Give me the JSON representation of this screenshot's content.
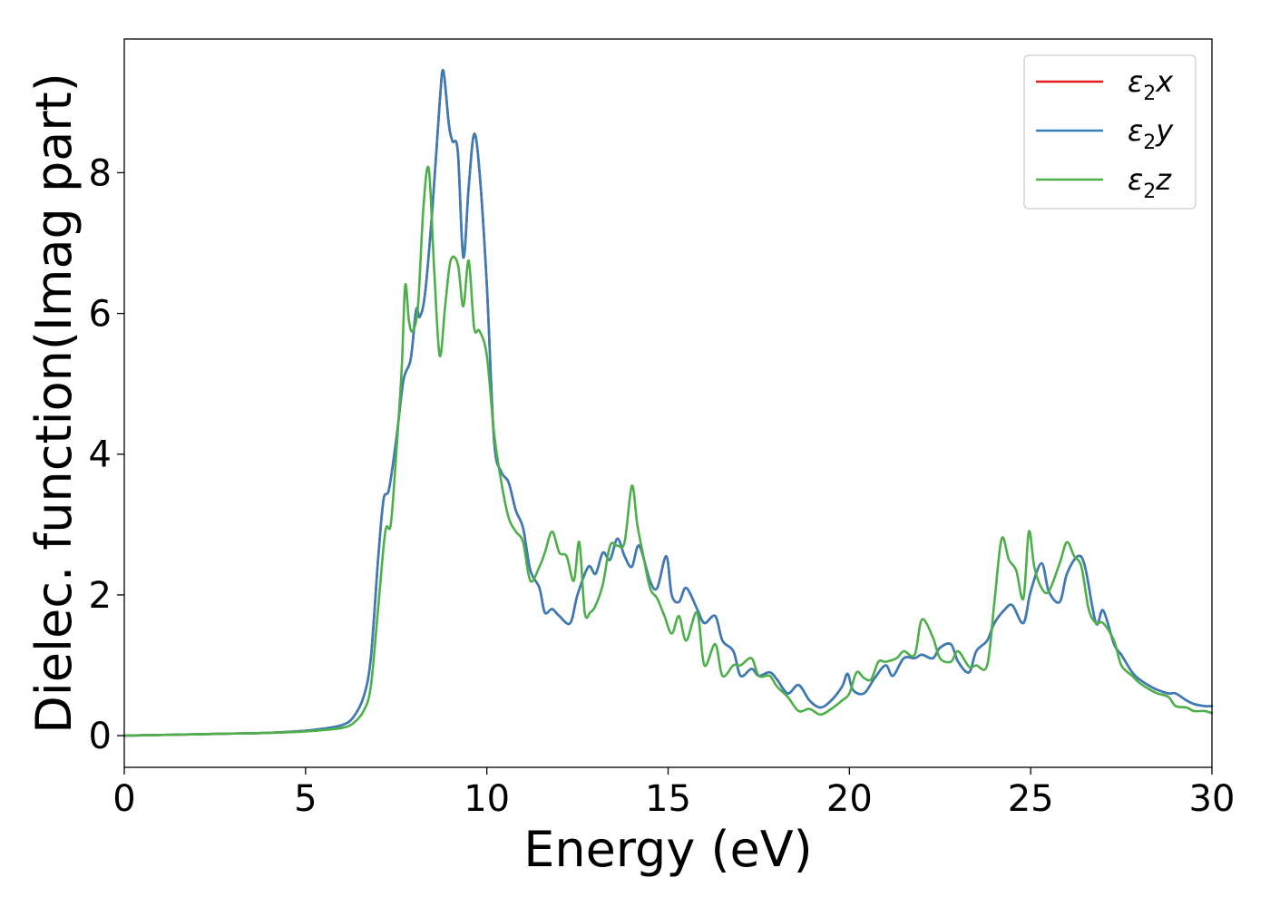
{
  "chart_data": {
    "type": "line",
    "title": "",
    "xlabel": "Energy (eV)",
    "ylabel": "Dielec. function(Imag part)",
    "xlim": [
      0,
      30
    ],
    "ylim": [
      -0.45,
      9.9
    ],
    "xticks": [
      0,
      5,
      10,
      15,
      20,
      25,
      30
    ],
    "yticks": [
      0,
      2,
      4,
      6,
      8
    ],
    "grid": false,
    "legend_position": "top-right",
    "series": [
      {
        "name": "ε₂x",
        "legend_parts": {
          "base": "ε",
          "sub": "2",
          "var": "x"
        },
        "color": "#e41a1c",
        "x": [
          0,
          1,
          2,
          3,
          4,
          5,
          5.5,
          6,
          6.3,
          6.6,
          6.8,
          7.0,
          7.15,
          7.3,
          7.5,
          7.7,
          7.9,
          8.05,
          8.15,
          8.3,
          8.5,
          8.7,
          8.8,
          8.95,
          9.05,
          9.2,
          9.35,
          9.5,
          9.65,
          9.8,
          10.0,
          10.2,
          10.4,
          10.6,
          10.8,
          11.0,
          11.2,
          11.45,
          11.6,
          11.8,
          12.0,
          12.3,
          12.5,
          12.8,
          13.0,
          13.2,
          13.4,
          13.6,
          13.8,
          14.0,
          14.2,
          14.5,
          14.7,
          14.95,
          15.1,
          15.3,
          15.5,
          15.8,
          16.0,
          16.3,
          16.5,
          16.8,
          17.0,
          17.3,
          17.5,
          17.8,
          18.0,
          18.3,
          18.6,
          18.9,
          19.2,
          19.5,
          19.8,
          19.95,
          20.1,
          20.4,
          20.7,
          21.0,
          21.2,
          21.5,
          21.8,
          22.0,
          22.3,
          22.5,
          22.8,
          23.0,
          23.3,
          23.5,
          23.8,
          24.0,
          24.3,
          24.5,
          24.8,
          25.0,
          25.3,
          25.5,
          25.8,
          26.0,
          26.3,
          26.5,
          26.8,
          27.0,
          27.3,
          27.5,
          27.8,
          28.0,
          28.3,
          28.5,
          28.8,
          29.0,
          29.3,
          29.5,
          29.8,
          30.0
        ],
        "y": [
          0,
          0.01,
          0.02,
          0.03,
          0.04,
          0.07,
          0.1,
          0.15,
          0.25,
          0.55,
          1.1,
          2.5,
          3.35,
          3.5,
          4.2,
          5.05,
          5.35,
          6.05,
          5.95,
          6.3,
          7.5,
          9.0,
          9.45,
          8.7,
          8.45,
          8.3,
          6.8,
          7.8,
          8.55,
          8.0,
          6.4,
          4.2,
          3.75,
          3.6,
          3.2,
          2.95,
          2.35,
          2.1,
          1.75,
          1.8,
          1.7,
          1.6,
          2.0,
          2.4,
          2.3,
          2.6,
          2.5,
          2.8,
          2.55,
          2.4,
          2.7,
          2.2,
          2.1,
          2.55,
          2.0,
          1.9,
          2.1,
          1.8,
          1.6,
          1.7,
          1.35,
          1.2,
          0.85,
          0.95,
          0.85,
          0.9,
          0.8,
          0.6,
          0.72,
          0.5,
          0.4,
          0.5,
          0.7,
          0.88,
          0.65,
          0.6,
          0.82,
          1.0,
          0.85,
          1.1,
          1.1,
          1.15,
          1.1,
          1.25,
          1.3,
          1.05,
          0.9,
          1.2,
          1.35,
          1.6,
          1.8,
          1.85,
          1.6,
          2.05,
          2.45,
          2.05,
          1.9,
          2.3,
          2.55,
          2.4,
          1.6,
          1.78,
          1.3,
          1.15,
          0.9,
          0.8,
          0.7,
          0.65,
          0.6,
          0.6,
          0.5,
          0.45,
          0.42,
          0.42
        ]
      },
      {
        "name": "ε₂y",
        "legend_parts": {
          "base": "ε",
          "sub": "2",
          "var": "y"
        },
        "color": "#377eb8",
        "x": [
          0,
          1,
          2,
          3,
          4,
          5,
          5.5,
          6,
          6.3,
          6.6,
          6.8,
          7.0,
          7.15,
          7.3,
          7.5,
          7.7,
          7.9,
          8.05,
          8.15,
          8.3,
          8.5,
          8.7,
          8.8,
          8.95,
          9.05,
          9.2,
          9.35,
          9.5,
          9.65,
          9.8,
          10.0,
          10.2,
          10.4,
          10.6,
          10.8,
          11.0,
          11.2,
          11.45,
          11.6,
          11.8,
          12.0,
          12.3,
          12.5,
          12.8,
          13.0,
          13.2,
          13.4,
          13.6,
          13.8,
          14.0,
          14.2,
          14.5,
          14.7,
          14.95,
          15.1,
          15.3,
          15.5,
          15.8,
          16.0,
          16.3,
          16.5,
          16.8,
          17.0,
          17.3,
          17.5,
          17.8,
          18.0,
          18.3,
          18.6,
          18.9,
          19.2,
          19.5,
          19.8,
          19.95,
          20.1,
          20.4,
          20.7,
          21.0,
          21.2,
          21.5,
          21.8,
          22.0,
          22.3,
          22.5,
          22.8,
          23.0,
          23.3,
          23.5,
          23.8,
          24.0,
          24.3,
          24.5,
          24.8,
          25.0,
          25.3,
          25.5,
          25.8,
          26.0,
          26.3,
          26.5,
          26.8,
          27.0,
          27.3,
          27.5,
          27.8,
          28.0,
          28.3,
          28.5,
          28.8,
          29.0,
          29.3,
          29.5,
          29.8,
          30.0
        ],
        "y": [
          0,
          0.01,
          0.02,
          0.03,
          0.04,
          0.07,
          0.1,
          0.15,
          0.25,
          0.55,
          1.1,
          2.5,
          3.35,
          3.5,
          4.2,
          5.05,
          5.35,
          6.05,
          5.95,
          6.3,
          7.5,
          9.0,
          9.45,
          8.7,
          8.45,
          8.3,
          6.8,
          7.8,
          8.55,
          8.0,
          6.4,
          4.2,
          3.75,
          3.6,
          3.2,
          2.95,
          2.35,
          2.1,
          1.75,
          1.8,
          1.7,
          1.6,
          2.0,
          2.4,
          2.3,
          2.6,
          2.5,
          2.8,
          2.55,
          2.4,
          2.7,
          2.2,
          2.1,
          2.55,
          2.0,
          1.9,
          2.1,
          1.8,
          1.6,
          1.7,
          1.35,
          1.2,
          0.85,
          0.95,
          0.85,
          0.9,
          0.8,
          0.6,
          0.72,
          0.5,
          0.4,
          0.5,
          0.7,
          0.88,
          0.65,
          0.6,
          0.82,
          1.0,
          0.85,
          1.1,
          1.1,
          1.15,
          1.1,
          1.25,
          1.3,
          1.05,
          0.9,
          1.2,
          1.35,
          1.6,
          1.8,
          1.85,
          1.6,
          2.05,
          2.45,
          2.05,
          1.9,
          2.3,
          2.55,
          2.4,
          1.6,
          1.78,
          1.3,
          1.15,
          0.9,
          0.8,
          0.7,
          0.65,
          0.6,
          0.6,
          0.5,
          0.45,
          0.42,
          0.42
        ]
      },
      {
        "name": "ε₂z",
        "legend_parts": {
          "base": "ε",
          "sub": "2",
          "var": "z"
        },
        "color": "#4daf4a",
        "x": [
          0,
          1,
          2,
          3,
          4,
          5,
          5.5,
          6,
          6.3,
          6.6,
          6.8,
          7.0,
          7.2,
          7.35,
          7.5,
          7.65,
          7.75,
          7.85,
          7.95,
          8.1,
          8.25,
          8.4,
          8.55,
          8.7,
          8.85,
          9.0,
          9.2,
          9.35,
          9.5,
          9.65,
          9.8,
          10.0,
          10.2,
          10.4,
          10.6,
          10.8,
          11.0,
          11.2,
          11.45,
          11.6,
          11.8,
          12.0,
          12.2,
          12.4,
          12.55,
          12.7,
          12.85,
          13.0,
          13.2,
          13.4,
          13.6,
          13.8,
          14.0,
          14.15,
          14.3,
          14.5,
          14.7,
          14.9,
          15.1,
          15.3,
          15.5,
          15.8,
          16.0,
          16.3,
          16.5,
          16.8,
          17.0,
          17.3,
          17.5,
          17.8,
          18.0,
          18.3,
          18.6,
          18.9,
          19.2,
          19.5,
          19.8,
          20.0,
          20.2,
          20.4,
          20.6,
          20.8,
          21.0,
          21.3,
          21.5,
          21.8,
          22.0,
          22.3,
          22.5,
          22.8,
          23.0,
          23.3,
          23.5,
          23.8,
          24.0,
          24.2,
          24.4,
          24.6,
          24.8,
          24.95,
          25.1,
          25.3,
          25.5,
          25.8,
          26.0,
          26.2,
          26.4,
          26.6,
          26.8,
          27.0,
          27.3,
          27.5,
          27.8,
          28.0,
          28.3,
          28.5,
          28.8,
          29.0,
          29.3,
          29.5,
          29.8,
          30.0
        ],
        "y": [
          0,
          0.01,
          0.02,
          0.03,
          0.04,
          0.06,
          0.08,
          0.11,
          0.17,
          0.35,
          0.7,
          1.8,
          2.9,
          3.0,
          4.0,
          5.2,
          6.4,
          5.9,
          5.75,
          6.1,
          7.5,
          8.05,
          6.6,
          5.4,
          6.1,
          6.75,
          6.7,
          6.1,
          6.75,
          5.8,
          5.75,
          5.4,
          4.3,
          3.6,
          3.1,
          2.9,
          2.75,
          2.2,
          2.4,
          2.6,
          2.9,
          2.6,
          2.55,
          2.2,
          2.75,
          1.75,
          1.75,
          1.85,
          2.15,
          2.7,
          2.7,
          2.75,
          3.55,
          3.0,
          2.6,
          2.1,
          1.95,
          1.7,
          1.45,
          1.7,
          1.35,
          1.75,
          1.0,
          1.3,
          0.85,
          1.0,
          1.0,
          1.1,
          0.85,
          0.85,
          0.7,
          0.55,
          0.35,
          0.38,
          0.3,
          0.38,
          0.5,
          0.6,
          0.9,
          0.82,
          0.8,
          1.05,
          1.05,
          1.1,
          1.2,
          1.15,
          1.65,
          1.4,
          1.1,
          1.05,
          1.2,
          0.98,
          1.0,
          1.0,
          1.9,
          2.8,
          2.5,
          2.35,
          1.95,
          2.9,
          2.4,
          2.1,
          2.05,
          2.45,
          2.75,
          2.55,
          2.4,
          1.8,
          1.6,
          1.6,
          1.35,
          1.0,
          0.85,
          0.75,
          0.65,
          0.6,
          0.55,
          0.42,
          0.4,
          0.35,
          0.35,
          0.32
        ]
      }
    ]
  }
}
